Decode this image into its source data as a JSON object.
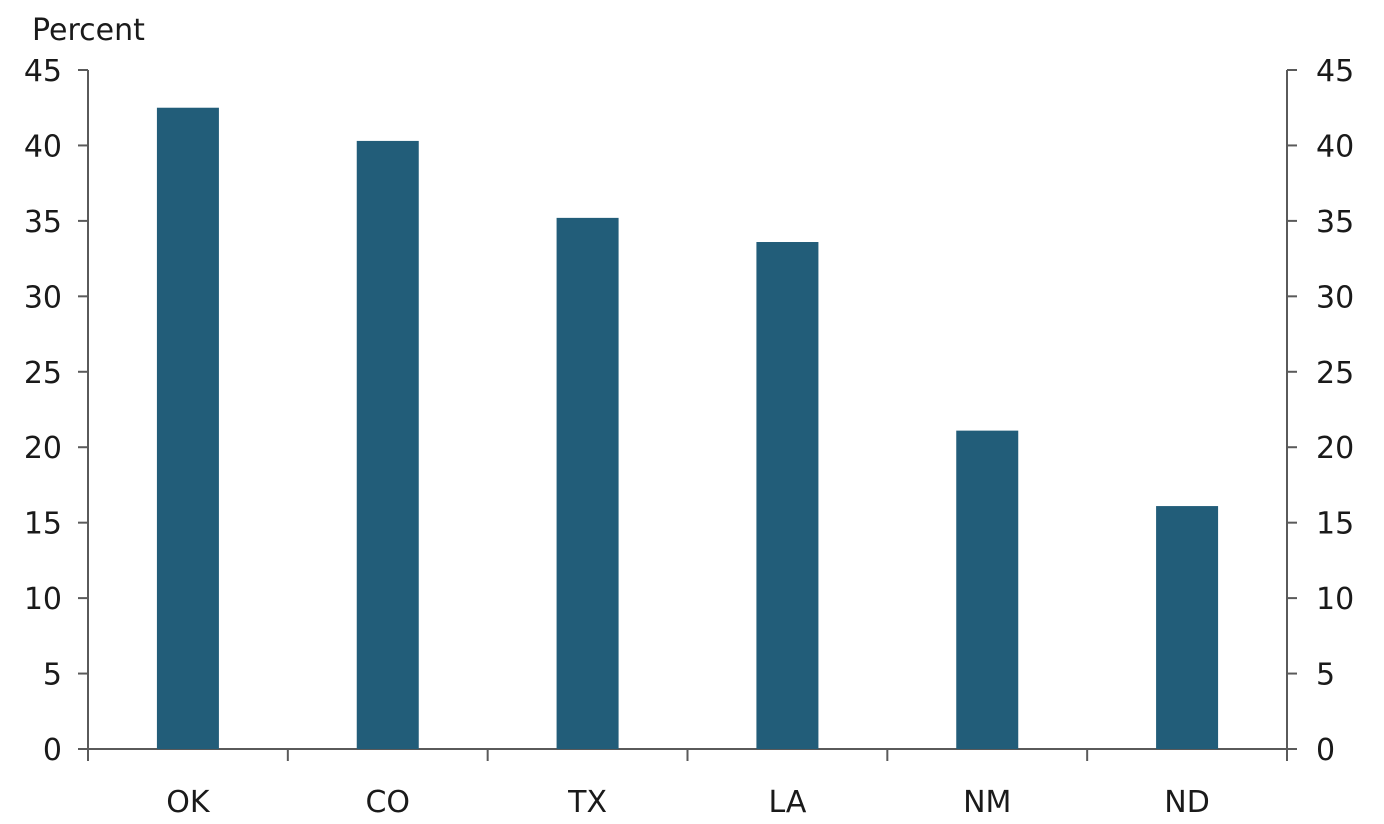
{
  "chart_data": {
    "type": "bar",
    "ylabel": "Percent",
    "categories": [
      "OK",
      "CO",
      "TX",
      "LA",
      "NM",
      "ND"
    ],
    "values": [
      42.5,
      40.3,
      35.2,
      33.6,
      21.1,
      16.1
    ],
    "ylim": [
      0,
      45
    ],
    "yticks": [
      "0",
      "5",
      "10",
      "15",
      "20",
      "25",
      "30",
      "35",
      "40",
      "45"
    ],
    "y_axis_right": true,
    "grid": false,
    "colors": {
      "bar": "#225d79",
      "axis": "#5a5a5a"
    }
  }
}
